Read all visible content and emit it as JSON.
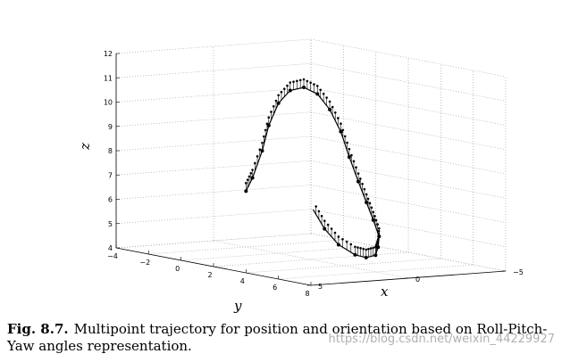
{
  "chart_data": {
    "type": "line3d",
    "xlabel": "x",
    "ylabel": "y",
    "zlabel": "z",
    "xticks": [
      "5",
      "0",
      "−5"
    ],
    "yticks": [
      "−4",
      "−2",
      "0",
      "2",
      "4",
      "6",
      "8"
    ],
    "zticks": [
      "4",
      "5",
      "6",
      "7",
      "8",
      "9",
      "10",
      "11",
      "12"
    ],
    "xlim": [
      5,
      -5
    ],
    "ylim": [
      -4,
      8
    ],
    "zlim": [
      4,
      12
    ],
    "grid": true,
    "series": [
      {
        "points": [
          [
            0.0,
            -2.0,
            6.3
          ],
          [
            0.5,
            -1.0,
            7.0
          ],
          [
            1.0,
            0.2,
            8.3
          ],
          [
            1.5,
            1.2,
            9.5
          ],
          [
            2.0,
            2.4,
            10.6
          ],
          [
            2.4,
            3.6,
            11.3
          ],
          [
            2.7,
            4.8,
            11.6
          ],
          [
            3.0,
            6.0,
            11.5
          ],
          [
            3.2,
            7.0,
            11.0
          ],
          [
            3.3,
            7.8,
            10.2
          ],
          [
            3.2,
            8.2,
            9.2
          ],
          [
            2.9,
            8.4,
            8.2
          ],
          [
            2.4,
            8.3,
            7.3
          ],
          [
            1.8,
            8.0,
            6.5
          ],
          [
            1.0,
            7.4,
            5.7
          ],
          [
            0.3,
            6.5,
            5.1
          ],
          [
            -0.4,
            5.5,
            4.6
          ],
          [
            -1.0,
            4.2,
            4.3
          ],
          [
            -1.6,
            2.8,
            4.2
          ],
          [
            -2.0,
            1.3,
            4.4
          ],
          [
            -2.2,
            0.2,
            4.9
          ],
          [
            -2.2,
            -0.5,
            5.6
          ]
        ]
      }
    ]
  },
  "caption": {
    "label": "Fig. 8.7.",
    "text": "Multipoint trajectory for position and orientation based on Roll-Pitch-Yaw angles representation.",
    "watermark": "https://blog.csdn.net/weixin_44229927"
  },
  "colors": {
    "line": "#000000",
    "grid": "#9a9a9a",
    "box": "#000000"
  }
}
